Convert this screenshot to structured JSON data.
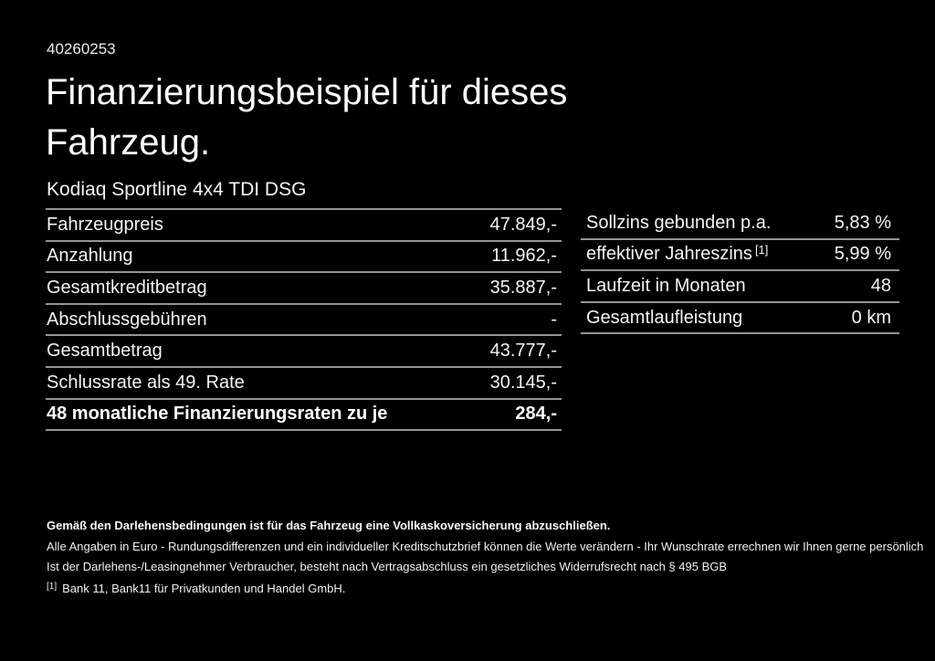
{
  "document": {
    "number": "40260253",
    "title_line1": "Finanzierungsbeispiel für dieses",
    "title_line2": "Fahrzeug.",
    "vehicle_model": "Kodiaq Sportline 4x4 TDI DSG"
  },
  "financing_table": {
    "rows": [
      {
        "label": "Fahrzeugpreis",
        "value": "47.849,-"
      },
      {
        "label": "Anzahlung",
        "value": "11.962,-"
      },
      {
        "label": "Gesamtkreditbetrag",
        "value": "35.887,-"
      },
      {
        "label": "Abschlussgebühren",
        "value": "-"
      },
      {
        "label": "Gesamtbetrag",
        "value": "43.777,-"
      },
      {
        "label": "Schlussrate als 49. Rate",
        "value": "30.145,-"
      },
      {
        "label": "48 monatliche Finanzierungsraten zu je",
        "value": "284,-"
      }
    ]
  },
  "conditions_table": {
    "rows": [
      {
        "label": "Sollzins gebunden p.a.",
        "value": "5,83 %"
      },
      {
        "label": "effektiver Jahreszins",
        "footnote_marker": "[1]",
        "value": "5,99 %"
      },
      {
        "label": "Laufzeit in Monaten",
        "value": "48"
      },
      {
        "label": "Gesamtlaufleistung",
        "value": "0 km"
      }
    ]
  },
  "footer": {
    "insurance_note": "Gemäß den Darlehensbedingungen ist für das Fahrzeug eine Vollkaskoversicherung abzuschließen.",
    "disclaimer_line1": "Alle Angaben in Euro - Rundungsdifferenzen und ein individueller Kreditschutzbrief können die Werte verändern - Ihr Wunschrate errechnen wir Ihnen gerne persönlich",
    "disclaimer_line2": "Ist der Darlehens-/Leasingnehmer Verbraucher, besteht nach Vertragsabschluss ein gesetzliches Widerrufsrecht nach § 495 BGB",
    "footnote_marker": "[1]",
    "footnote_text": "Bank 11, Bank11 für Privatkunden und Handel GmbH."
  },
  "colors": {
    "background": "#000000",
    "text": "#f5f5f5",
    "separator": "#949494"
  }
}
